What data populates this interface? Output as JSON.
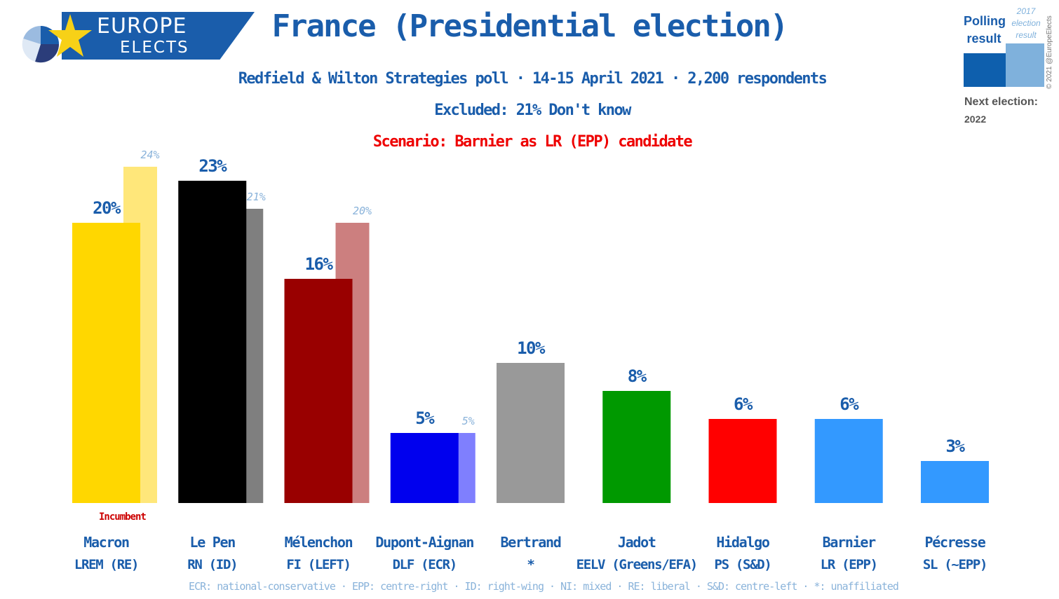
{
  "brand": {
    "line1": "EUROPE",
    "line2": "ELECTS",
    "colors": {
      "blue": "#1a5dab",
      "yellow": "#f7d117"
    }
  },
  "header": {
    "title": "France (Presidential election)",
    "subtitle": "Redfield & Wilton Strategies poll · 14-15 April 2021 · 2,200 respondents",
    "excluded": "Excluded: 21% Don't know",
    "scenario": "Scenario: Barnier as LR (EPP) candidate"
  },
  "legend": {
    "polling_result": "Polling result",
    "election_result": "2017 election result",
    "next_election_label": "Next election:",
    "next_election_year": "2022",
    "copyright": "© 2021 @EuropeElects"
  },
  "incumbent_label": "Incumbent",
  "footer": "ECR: national-conservative · EPP: centre-right · ID: right-wing · NI: mixed · RE: liberal · S&D: centre-left · *: unaffiliated",
  "chart_data": {
    "type": "bar",
    "title": "France (Presidential election)",
    "ylim": [
      0,
      25
    ],
    "grid": false,
    "categories": [
      "Macron",
      "Le Pen",
      "Mélenchon",
      "Dupont-Aignan",
      "Bertrand",
      "Jadot",
      "Hidalgo",
      "Barnier",
      "Pécresse"
    ],
    "parties": [
      "LREM (RE)",
      "RN (ID)",
      "FI (LEFT)",
      "DLF (ECR)",
      "*",
      "EELV (Greens/EFA)",
      "PS (S&D)",
      "LR (EPP)",
      "SL (~EPP)"
    ],
    "series": [
      {
        "name": "Polling result",
        "values": [
          20,
          23,
          16,
          5,
          10,
          8,
          6,
          6,
          3
        ],
        "labels": [
          "20%",
          "23%",
          "16%",
          "5%",
          "10%",
          "8%",
          "6%",
          "6%",
          "3%"
        ],
        "colors": [
          "#ffd700",
          "#000000",
          "#990000",
          "#0000ee",
          "#999999",
          "#009900",
          "#ff0000",
          "#3399ff",
          "#3399ff"
        ]
      },
      {
        "name": "2017 election result",
        "values": [
          24,
          21,
          20,
          5,
          null,
          null,
          null,
          null,
          null
        ],
        "labels": [
          "24%",
          "21%",
          "20%",
          "5%",
          null,
          null,
          null,
          null,
          null
        ],
        "colors": [
          "#ffe77a",
          "#7f7f7f",
          "#cc7f7f",
          "#7f7ffe",
          null,
          null,
          null,
          null,
          null
        ]
      }
    ],
    "incumbent": "Macron"
  }
}
